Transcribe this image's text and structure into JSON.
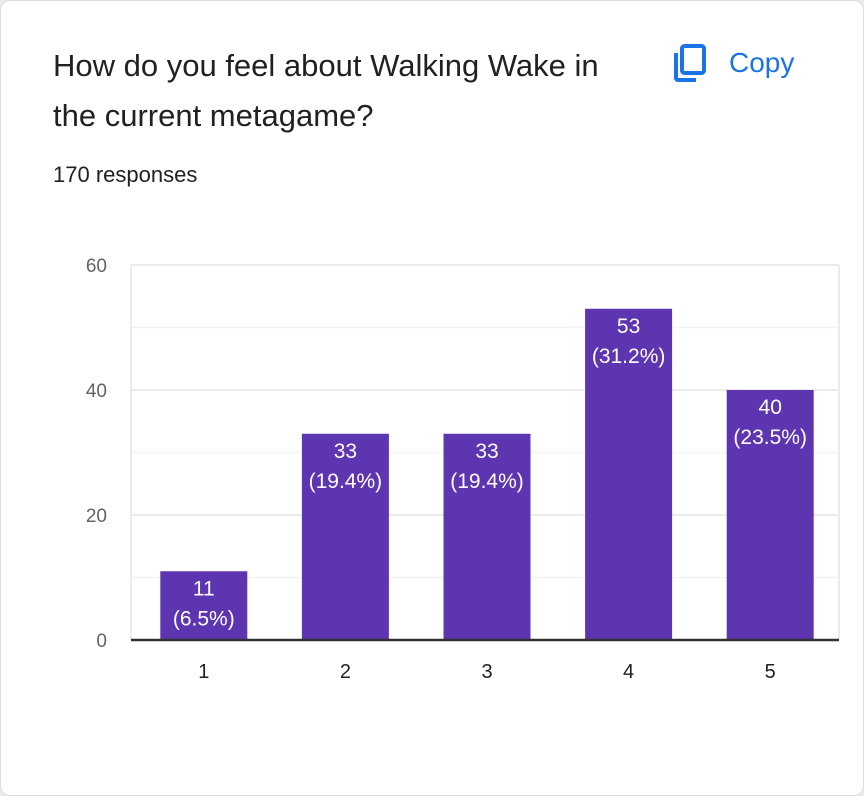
{
  "card": {
    "title": "How do you feel about Walking Wake in the current metagame?",
    "responses": "170 responses",
    "copy_label": "Copy",
    "copy_icon": "copy-icon"
  },
  "colors": {
    "bar": "#5e35b1",
    "accent": "#1a73e8",
    "text": "#202124",
    "axis_text": "#5f6368",
    "grid": "#ebebeb",
    "baseline": "#333333"
  },
  "chart_data": {
    "type": "bar",
    "title": "",
    "xlabel": "",
    "ylabel": "",
    "categories": [
      "1",
      "2",
      "3",
      "4",
      "5"
    ],
    "values": [
      11,
      33,
      33,
      53,
      40
    ],
    "data_labels": [
      [
        "11",
        "(6.5%)"
      ],
      [
        "33",
        "(19.4%)"
      ],
      [
        "33",
        "(19.4%)"
      ],
      [
        "53",
        "(31.2%)"
      ],
      [
        "40",
        "(23.5%)"
      ]
    ],
    "ylim": [
      0,
      60
    ],
    "yticks": [
      0,
      20,
      40,
      60
    ],
    "grid": true,
    "legend": "none"
  }
}
